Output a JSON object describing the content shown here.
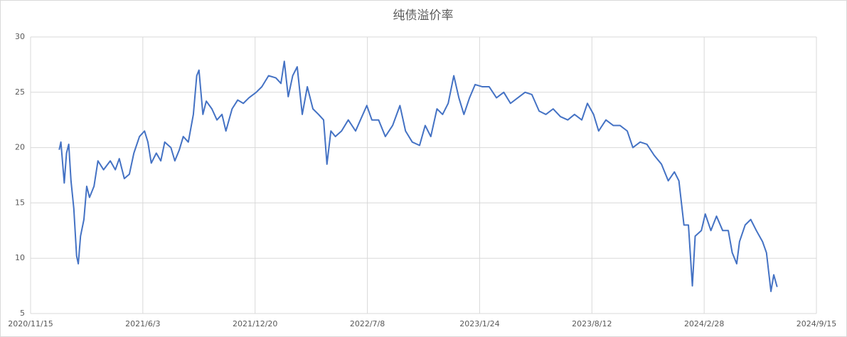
{
  "chart_data": {
    "type": "line",
    "title": "纯债溢价率",
    "x": [
      "2021/1/5",
      "2021/1/8",
      "2021/1/14",
      "2021/1/18",
      "2021/1/22",
      "2021/1/26",
      "2021/1/31",
      "2021/2/5",
      "2021/2/8",
      "2021/2/12",
      "2021/2/18",
      "2021/2/23",
      "2021/2/28",
      "2021/3/8",
      "2021/3/15",
      "2021/3/25",
      "2021/4/6",
      "2021/4/15",
      "2021/4/22",
      "2021/5/1",
      "2021/5/10",
      "2021/5/18",
      "2021/5/28",
      "2021/6/6",
      "2021/6/12",
      "2021/6/18",
      "2021/6/27",
      "2021/7/5",
      "2021/7/12",
      "2021/7/23",
      "2021/7/30",
      "2021/8/7",
      "2021/8/14",
      "2021/8/23",
      "2021/9/1",
      "2021/9/7",
      "2021/9/11",
      "2021/9/18",
      "2021/9/24",
      "2021/10/4",
      "2021/10/13",
      "2021/10/22",
      "2021/10/29",
      "2021/11/9",
      "2021/11/19",
      "2021/11/29",
      "2021/12/9",
      "2021/12/22",
      "2022/1/1",
      "2022/1/13",
      "2022/1/26",
      "2022/2/4",
      "2022/2/10",
      "2022/2/17",
      "2022/2/25",
      "2022/3/5",
      "2022/3/14",
      "2022/3/23",
      "2022/4/2",
      "2022/4/12",
      "2022/4/21",
      "2022/4/27",
      "2022/5/4",
      "2022/5/12",
      "2022/5/23",
      "2022/6/4",
      "2022/6/17",
      "2022/6/30",
      "2022/7/7",
      "2022/7/16",
      "2022/7/28",
      "2022/8/9",
      "2022/8/22",
      "2022/9/4",
      "2022/9/14",
      "2022/9/26",
      "2022/10/9",
      "2022/10/19",
      "2022/10/29",
      "2022/11/9",
      "2022/11/19",
      "2022/11/29",
      "2022/12/9",
      "2022/12/18",
      "2022/12/27",
      "2023/1/6",
      "2023/1/16",
      "2023/1/29",
      "2023/2/10",
      "2023/2/23",
      "2023/3/8",
      "2023/3/20",
      "2023/4/2",
      "2023/4/15",
      "2023/4/27",
      "2023/5/10",
      "2023/5/22",
      "2023/6/4",
      "2023/6/17",
      "2023/6/30",
      "2023/7/12",
      "2023/7/25",
      "2023/8/4",
      "2023/8/15",
      "2023/8/24",
      "2023/9/6",
      "2023/9/19",
      "2023/10/1",
      "2023/10/14",
      "2023/10/24",
      "2023/11/6",
      "2023/11/18",
      "2023/12/1",
      "2023/12/14",
      "2023/12/26",
      "2024/1/6",
      "2024/1/14",
      "2024/1/23",
      "2024/1/31",
      "2024/2/7",
      "2024/2/12",
      "2024/2/23",
      "2024/3/1",
      "2024/3/11",
      "2024/3/21",
      "2024/4/1",
      "2024/4/11",
      "2024/4/18",
      "2024/4/26",
      "2024/5/1",
      "2024/5/11",
      "2024/5/21",
      "2024/5/31",
      "2024/6/11",
      "2024/6/18",
      "2024/6/26",
      "2024/7/1",
      "2024/7/7"
    ],
    "series": [
      {
        "color": "#4472c4",
        "values": [
          19.8,
          20.5,
          16.8,
          19.5,
          20.3,
          17,
          14.5,
          10.2,
          9.5,
          12,
          13.5,
          16.5,
          15.5,
          16.5,
          18.8,
          18,
          18.8,
          18,
          19,
          17.2,
          17.6,
          19.5,
          21,
          21.5,
          20.5,
          18.6,
          19.5,
          18.8,
          20.5,
          20,
          18.8,
          19.8,
          21,
          20.5,
          23,
          26.5,
          27,
          23,
          24.2,
          23.5,
          22.5,
          23,
          21.5,
          23.5,
          24.3,
          24,
          24.5,
          25,
          25.5,
          26.5,
          26.3,
          25.8,
          27.8,
          24.6,
          26.5,
          27.3,
          23,
          25.5,
          23.5,
          23,
          22.5,
          18.5,
          21.5,
          21,
          21.5,
          22.5,
          21.5,
          23,
          23.8,
          22.5,
          22.5,
          21,
          22,
          23.8,
          21.5,
          20.5,
          20.2,
          22,
          21,
          23.5,
          23,
          24,
          26.5,
          24.5,
          23,
          24.5,
          25.7,
          25.5,
          25.5,
          24.5,
          25,
          24,
          24.5,
          25,
          24.8,
          23.3,
          23,
          23.5,
          22.8,
          22.5,
          23,
          22.5,
          24,
          23,
          21.5,
          22.5,
          22,
          22,
          21.5,
          20,
          20.5,
          20.3,
          19.3,
          18.5,
          17,
          17.8,
          17,
          13,
          13,
          7.5,
          12,
          12.5,
          14,
          12.5,
          13.8,
          12.5,
          12.5,
          10.5,
          9.5,
          11.5,
          13,
          13.5,
          12.5,
          11.5,
          10.5,
          7,
          8.5,
          7.4
        ]
      }
    ],
    "xlim": [
      "2020/11/15",
      "2024/9/15"
    ],
    "xticks": [
      "2020/11/15",
      "2021/6/3",
      "2021/12/20",
      "2022/7/8",
      "2023/1/24",
      "2023/8/12",
      "2024/2/28",
      "2024/9/15"
    ],
    "ylim": [
      5,
      30
    ],
    "yticks": [
      5,
      10,
      15,
      20,
      25,
      30
    ],
    "grid": true
  }
}
